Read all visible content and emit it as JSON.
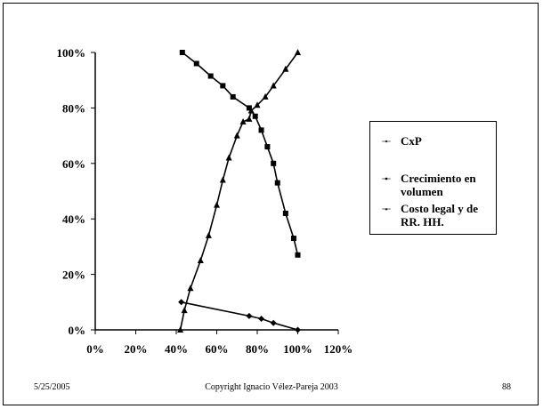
{
  "chart_data": {
    "type": "line",
    "xlim": [
      0,
      120
    ],
    "ylim": [
      0,
      100
    ],
    "x_ticks": [
      "0%",
      "20%",
      "40%",
      "60%",
      "80%",
      "100%",
      "120%"
    ],
    "y_ticks": [
      "0%",
      "20%",
      "40%",
      "60%",
      "80%",
      "100%"
    ],
    "grid": false,
    "legend_position": "right",
    "series": [
      {
        "name": "CxP",
        "marker": "diamond",
        "points": [
          [
            42.5,
            10
          ],
          [
            76,
            5
          ],
          [
            82,
            4
          ],
          [
            88,
            2.5
          ],
          [
            100,
            0
          ]
        ]
      },
      {
        "name": "Crecimiento en volumen",
        "marker": "square",
        "points": [
          [
            43,
            100
          ],
          [
            50,
            96
          ],
          [
            57,
            91.5
          ],
          [
            63,
            88
          ],
          [
            68,
            84
          ],
          [
            76,
            80
          ],
          [
            79,
            77
          ],
          [
            82,
            72
          ],
          [
            85,
            66
          ],
          [
            88,
            60
          ],
          [
            90,
            53
          ],
          [
            94,
            42
          ],
          [
            98,
            33
          ],
          [
            100,
            27
          ]
        ]
      },
      {
        "name": "Costo legal y de RR. HH.",
        "marker": "triangle",
        "points": [
          [
            42,
            0
          ],
          [
            44,
            7
          ],
          [
            47,
            15
          ],
          [
            52,
            25
          ],
          [
            56,
            34
          ],
          [
            60,
            45
          ],
          [
            63,
            54
          ],
          [
            66,
            62
          ],
          [
            70,
            70
          ],
          [
            73,
            75
          ],
          [
            76,
            76
          ],
          [
            77,
            79
          ],
          [
            80,
            81
          ],
          [
            84,
            84
          ],
          [
            88,
            88
          ],
          [
            94,
            94
          ],
          [
            100,
            100
          ]
        ]
      }
    ]
  },
  "legend": {
    "items": [
      {
        "label": "CxP"
      },
      {
        "label": "Crecimiento en volumen"
      },
      {
        "label": "Costo legal y de RR. HH."
      }
    ]
  },
  "footer": {
    "date": "5/25/2005",
    "copyright": "Copyright Ignacio Vélez-Pareja 2003",
    "page": "88"
  }
}
